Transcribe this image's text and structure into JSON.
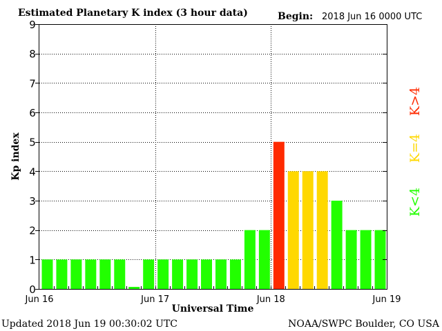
{
  "chart_data": {
    "type": "bar",
    "title": "Estimated Planetary K index (3 hour data)",
    "begin_label": "Begin:",
    "begin_value": "2018 Jun 16 0000 UTC",
    "xlabel": "Universal Time",
    "ylabel": "Kp index",
    "ylim": [
      0,
      9
    ],
    "yticks": [
      "0",
      "1",
      "2",
      "3",
      "4",
      "5",
      "6",
      "7",
      "8",
      "9"
    ],
    "xticks": [
      "Jun 16",
      "Jun 17",
      "Jun 18",
      "Jun 19"
    ],
    "values": [
      1,
      1,
      1,
      1,
      1,
      1,
      0.07,
      1,
      1,
      1,
      1,
      1,
      1,
      1,
      2,
      2,
      5,
      4,
      4,
      4,
      3,
      2,
      2,
      2
    ],
    "grid": true,
    "colors": {
      "below4": "#22ff00",
      "equal4": "#ffd800",
      "above4": "#ff2a00"
    },
    "legend": [
      "K<4",
      "K=4",
      "K>4"
    ],
    "legend_placement": "right"
  },
  "footer": {
    "updated": "Updated 2018 Jun 19 00:30:02 UTC",
    "source": "NOAA/SWPC Boulder, CO USA"
  }
}
